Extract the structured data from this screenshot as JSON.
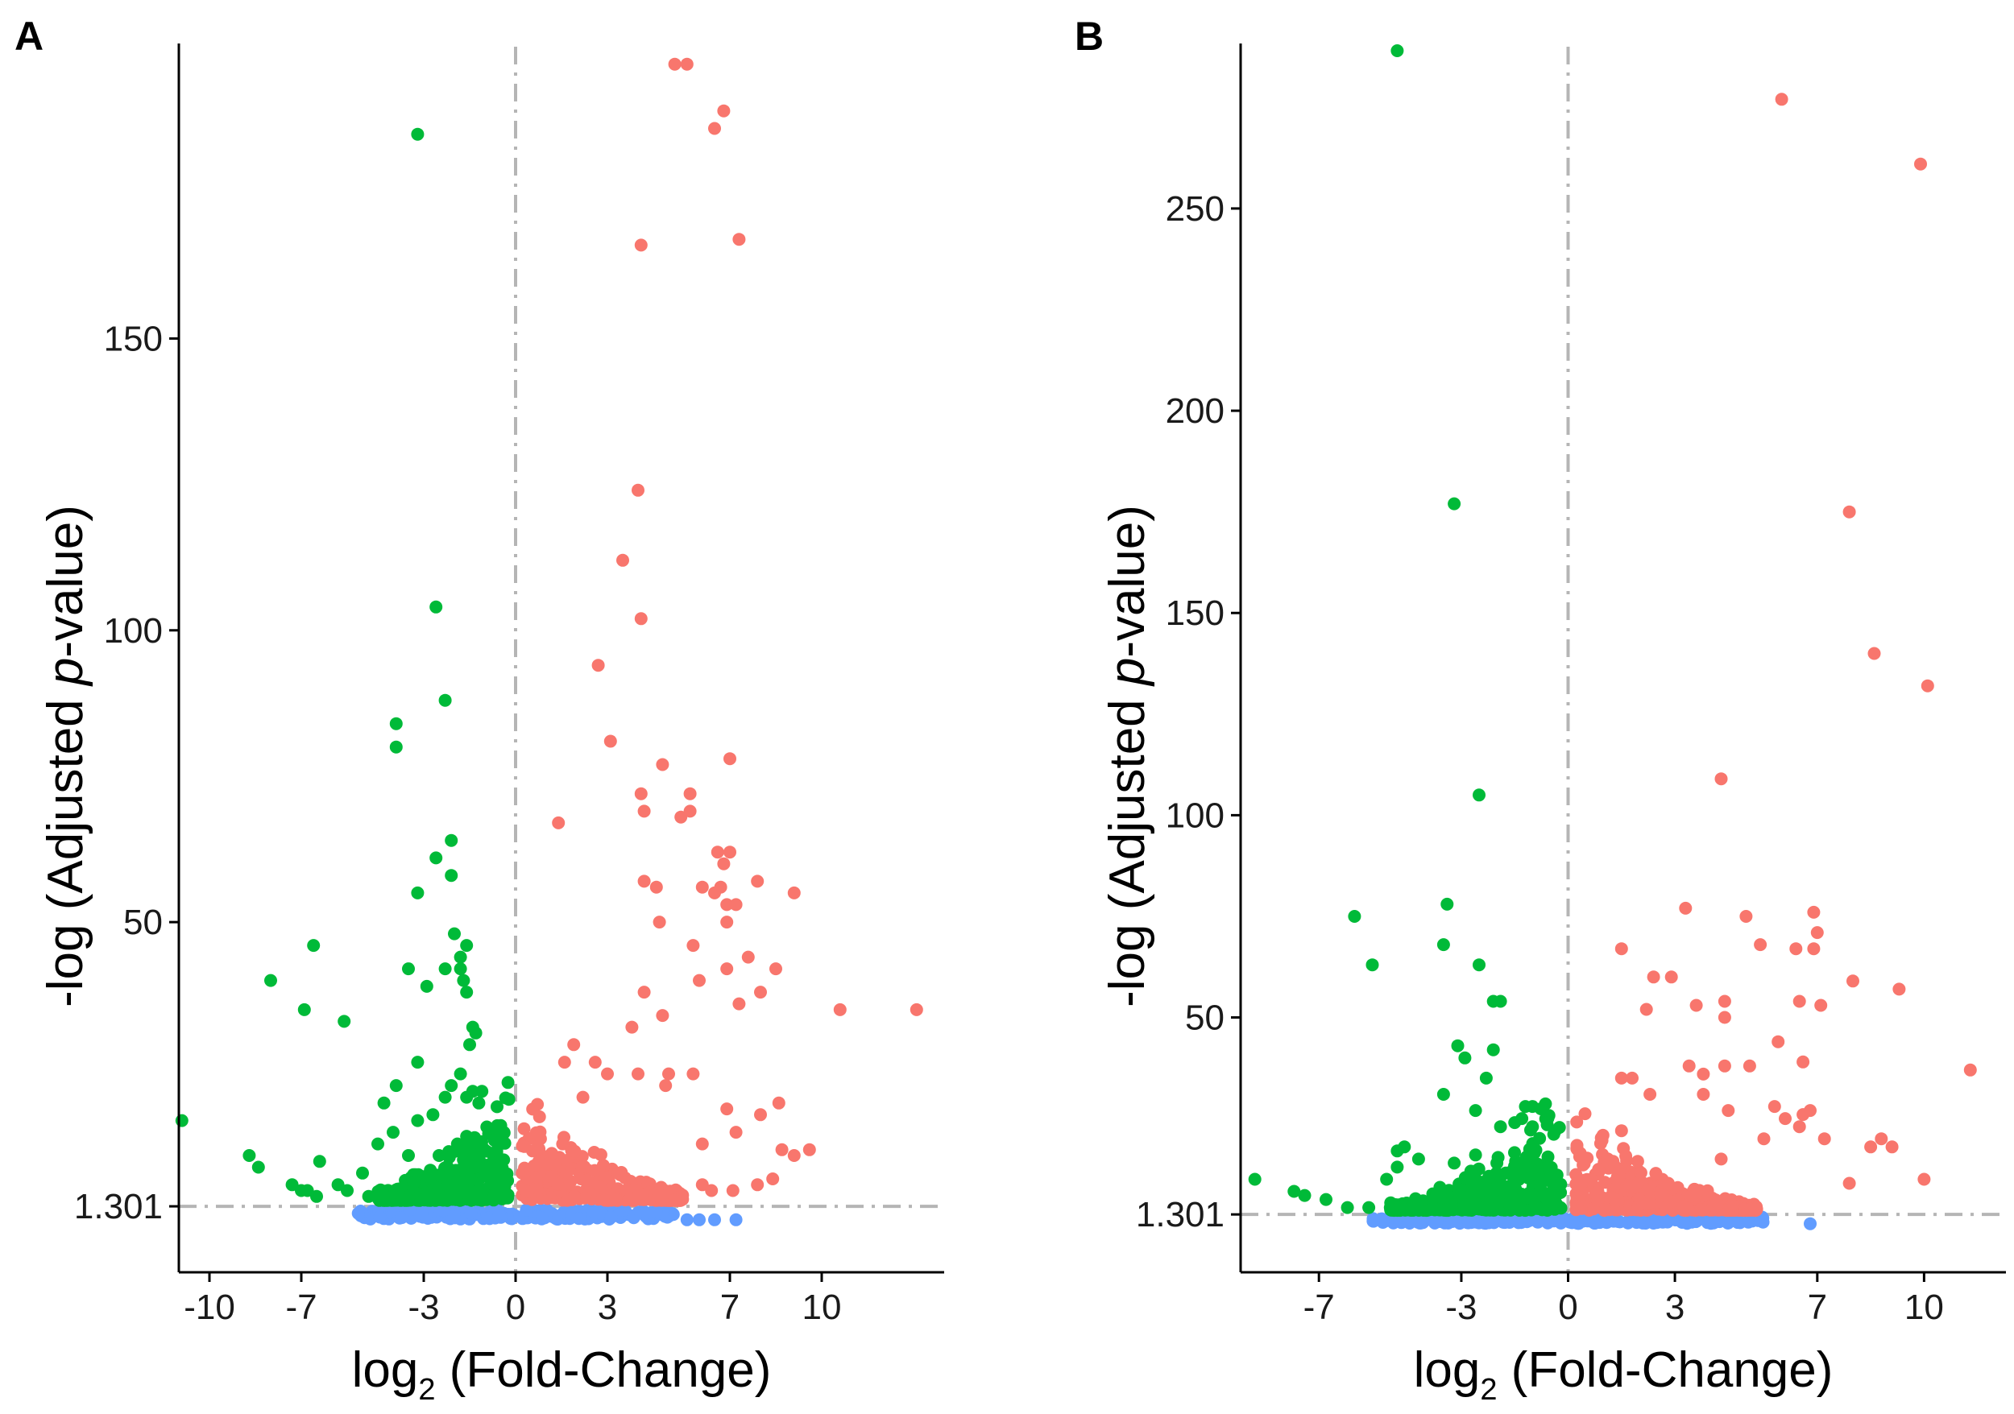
{
  "colors": {
    "down": "#00BA38",
    "up": "#F8766D",
    "ns": "#619CFF",
    "reference_line": "#B5B5B5",
    "axis": "#000000"
  },
  "chart_data": [
    {
      "panel": "A",
      "type": "scatter",
      "xlabel_main": "log",
      "xlabel_sub": "2",
      "xlabel_rest": " (Fold-Change)",
      "ylabel_pre": "-log (Adjusted ",
      "ylabel_italic": "p",
      "ylabel_post": "-value)",
      "xlim": [
        -11,
        14
      ],
      "ylim": [
        -10,
        200
      ],
      "xticks": [
        -10,
        -7,
        -3,
        0,
        3,
        7,
        10
      ],
      "xtick_labels": [
        "-10",
        "-7",
        "-3",
        "0",
        "3",
        "7",
        "10"
      ],
      "yticks": [
        1.301,
        50,
        100,
        150
      ],
      "ytick_labels": [
        "1.301",
        "50",
        "100",
        "150"
      ],
      "vline_x": 0,
      "hline_y": 1.301,
      "points": {
        "down": [
          [
            -3.2,
            185
          ],
          [
            -2.6,
            104
          ],
          [
            -2.3,
            88
          ],
          [
            -3.9,
            84
          ],
          [
            -3.9,
            80
          ],
          [
            -2.1,
            64
          ],
          [
            -2.6,
            61
          ],
          [
            -2.1,
            58
          ],
          [
            -3.2,
            55
          ],
          [
            -2.0,
            48
          ],
          [
            -1.6,
            46
          ],
          [
            -1.8,
            44
          ],
          [
            -2.3,
            42
          ],
          [
            -1.7,
            40
          ],
          [
            -1.6,
            38
          ],
          [
            -2.9,
            39
          ],
          [
            -1.8,
            42
          ],
          [
            -3.5,
            42
          ],
          [
            -6.6,
            46
          ],
          [
            -8.0,
            40
          ],
          [
            -6.9,
            35
          ],
          [
            -5.6,
            33
          ],
          [
            -1.4,
            32
          ],
          [
            -1.3,
            31
          ],
          [
            -1.5,
            29
          ],
          [
            -3.2,
            26
          ],
          [
            -1.8,
            24
          ],
          [
            -2.1,
            22
          ],
          [
            -3.9,
            22
          ],
          [
            -2.3,
            20
          ],
          [
            -4.3,
            19
          ],
          [
            -10.9,
            16
          ],
          [
            -8.7,
            10
          ],
          [
            -8.4,
            8
          ],
          [
            -6.4,
            9
          ],
          [
            -5.0,
            7
          ],
          [
            -4.5,
            12
          ],
          [
            -4.0,
            14
          ],
          [
            -3.2,
            16
          ],
          [
            -1.2,
            19
          ],
          [
            -1.1,
            21
          ],
          [
            -1.4,
            21
          ],
          [
            -1.6,
            20
          ],
          [
            -2.7,
            17
          ],
          [
            -1.9,
            12
          ],
          [
            -2.5,
            10
          ],
          [
            -3.5,
            10
          ],
          [
            -5.5,
            4
          ],
          [
            -6.5,
            3
          ],
          [
            -5.8,
            5
          ],
          [
            -4.8,
            3
          ],
          [
            -7.0,
            4
          ],
          [
            -7.3,
            5
          ],
          [
            -6.8,
            4
          ]
        ],
        "up": [
          [
            5.2,
            197
          ],
          [
            5.6,
            197
          ],
          [
            6.8,
            189
          ],
          [
            6.5,
            186
          ],
          [
            4.1,
            166
          ],
          [
            7.3,
            167
          ],
          [
            4.0,
            124
          ],
          [
            3.5,
            112
          ],
          [
            4.1,
            102
          ],
          [
            2.7,
            94
          ],
          [
            3.1,
            81
          ],
          [
            4.8,
            77
          ],
          [
            7.0,
            78
          ],
          [
            5.7,
            72
          ],
          [
            4.1,
            72
          ],
          [
            4.2,
            69
          ],
          [
            5.4,
            68
          ],
          [
            5.7,
            69
          ],
          [
            1.4,
            67
          ],
          [
            6.6,
            62
          ],
          [
            7.0,
            62
          ],
          [
            6.8,
            60
          ],
          [
            4.2,
            57
          ],
          [
            4.6,
            56
          ],
          [
            6.1,
            56
          ],
          [
            6.7,
            56
          ],
          [
            7.9,
            57
          ],
          [
            6.5,
            55
          ],
          [
            6.9,
            53
          ],
          [
            7.2,
            53
          ],
          [
            9.1,
            55
          ],
          [
            6.9,
            50
          ],
          [
            4.7,
            50
          ],
          [
            5.8,
            46
          ],
          [
            7.6,
            44
          ],
          [
            6.9,
            42
          ],
          [
            8.5,
            42
          ],
          [
            4.2,
            38
          ],
          [
            6.0,
            40
          ],
          [
            8.0,
            38
          ],
          [
            10.6,
            35
          ],
          [
            13.1,
            35
          ],
          [
            7.3,
            36
          ],
          [
            4.8,
            34
          ],
          [
            3.8,
            32
          ],
          [
            1.9,
            29
          ],
          [
            1.6,
            26
          ],
          [
            2.6,
            26
          ],
          [
            5.0,
            24
          ],
          [
            5.8,
            24
          ],
          [
            4.9,
            22
          ],
          [
            3.0,
            24
          ],
          [
            4.0,
            24
          ],
          [
            2.2,
            20
          ],
          [
            6.9,
            18
          ],
          [
            8.6,
            19
          ],
          [
            8.0,
            17
          ],
          [
            7.2,
            14
          ],
          [
            6.1,
            12
          ],
          [
            8.7,
            11
          ],
          [
            9.1,
            10
          ],
          [
            9.6,
            11
          ],
          [
            8.4,
            6
          ],
          [
            7.9,
            5
          ],
          [
            7.1,
            4
          ],
          [
            6.4,
            4
          ],
          [
            6.1,
            5
          ]
        ],
        "ns": [
          [
            5.6,
            -1
          ],
          [
            6.0,
            -1
          ],
          [
            6.5,
            -1
          ],
          [
            7.2,
            -1
          ]
        ]
      },
      "dense_clusters": {
        "down_cloud_x": [
          -4.5,
          -0.2
        ],
        "up_cloud_x": [
          0.2,
          5.5
        ],
        "ns_band_x": [
          -5.2,
          5.2
        ]
      }
    },
    {
      "panel": "B",
      "type": "scatter",
      "xlabel_main": "log",
      "xlabel_sub": "2",
      "xlabel_rest": " (Fold-Change)",
      "ylabel_pre": "-log (Adjusted ",
      "ylabel_italic": "p",
      "ylabel_post": "-value)",
      "xlim": [
        -9.2,
        12.3
      ],
      "ylim": [
        -13,
        290
      ],
      "xticks": [
        -7,
        -3,
        0,
        3,
        7,
        10
      ],
      "xtick_labels": [
        "-7",
        "-3",
        "0",
        "3",
        "7",
        "10"
      ],
      "yticks": [
        1.301,
        50,
        100,
        150,
        200,
        250
      ],
      "ytick_labels": [
        "1.301",
        "50",
        "100",
        "150",
        "200",
        "250"
      ],
      "vline_x": 0,
      "hline_y": 1.301,
      "points": {
        "down": [
          [
            -4.8,
            289
          ],
          [
            -3.2,
            177
          ],
          [
            -2.5,
            105
          ],
          [
            -3.4,
            78
          ],
          [
            -6.0,
            75
          ],
          [
            -3.5,
            68
          ],
          [
            -5.5,
            63
          ],
          [
            -2.5,
            63
          ],
          [
            -2.1,
            54
          ],
          [
            -1.9,
            54
          ],
          [
            -3.1,
            43
          ],
          [
            -2.1,
            42
          ],
          [
            -2.9,
            40
          ],
          [
            -2.3,
            35
          ],
          [
            -3.5,
            31
          ],
          [
            -1.2,
            28
          ],
          [
            -1.0,
            28
          ],
          [
            -2.6,
            27
          ],
          [
            -1.3,
            25
          ],
          [
            -1.5,
            24
          ],
          [
            -1.0,
            23
          ],
          [
            -1.9,
            23
          ],
          [
            -4.6,
            18
          ],
          [
            -4.8,
            17
          ],
          [
            -2.6,
            16
          ],
          [
            -4.2,
            15
          ],
          [
            -4.8,
            13
          ],
          [
            -8.8,
            10
          ],
          [
            -7.7,
            7
          ],
          [
            -7.4,
            6
          ],
          [
            -6.8,
            5
          ],
          [
            -5.1,
            10
          ],
          [
            -3.2,
            14
          ],
          [
            -2.0,
            14
          ],
          [
            -2.6,
            12
          ],
          [
            -1.2,
            14
          ],
          [
            -3.6,
            8
          ],
          [
            -6.2,
            3
          ],
          [
            -5.6,
            3
          ]
        ],
        "up": [
          [
            6.0,
            277
          ],
          [
            9.9,
            261
          ],
          [
            7.9,
            175
          ],
          [
            8.6,
            140
          ],
          [
            10.1,
            132
          ],
          [
            4.3,
            109
          ],
          [
            3.3,
            77
          ],
          [
            5.0,
            75
          ],
          [
            6.9,
            76
          ],
          [
            6.4,
            67
          ],
          [
            7.0,
            71
          ],
          [
            6.9,
            67
          ],
          [
            1.5,
            67
          ],
          [
            2.4,
            60
          ],
          [
            2.9,
            60
          ],
          [
            5.4,
            68
          ],
          [
            2.2,
            52
          ],
          [
            3.6,
            53
          ],
          [
            4.4,
            54
          ],
          [
            4.4,
            50
          ],
          [
            6.5,
            54
          ],
          [
            7.1,
            53
          ],
          [
            9.3,
            57
          ],
          [
            8.0,
            59
          ],
          [
            5.9,
            44
          ],
          [
            4.4,
            38
          ],
          [
            5.1,
            38
          ],
          [
            6.6,
            39
          ],
          [
            3.8,
            36
          ],
          [
            3.4,
            38
          ],
          [
            1.8,
            35
          ],
          [
            1.5,
            35
          ],
          [
            2.3,
            31
          ],
          [
            3.8,
            31
          ],
          [
            5.8,
            28
          ],
          [
            4.5,
            27
          ],
          [
            6.6,
            26
          ],
          [
            6.8,
            27
          ],
          [
            11.3,
            37
          ],
          [
            6.1,
            25
          ],
          [
            6.5,
            23
          ],
          [
            1.5,
            22
          ],
          [
            7.2,
            20
          ],
          [
            8.8,
            20
          ],
          [
            8.5,
            18
          ],
          [
            9.1,
            18
          ],
          [
            10.0,
            10
          ],
          [
            7.9,
            9
          ],
          [
            5.5,
            20
          ],
          [
            4.3,
            15
          ]
        ],
        "ns": [
          [
            6.8,
            -1
          ]
        ]
      },
      "dense_clusters": {
        "down_cloud_x": [
          -5.0,
          -0.2
        ],
        "up_cloud_x": [
          0.2,
          5.3
        ],
        "ns_band_x": [
          -5.5,
          5.5
        ]
      }
    }
  ],
  "panel_letters": [
    "A",
    "B"
  ]
}
